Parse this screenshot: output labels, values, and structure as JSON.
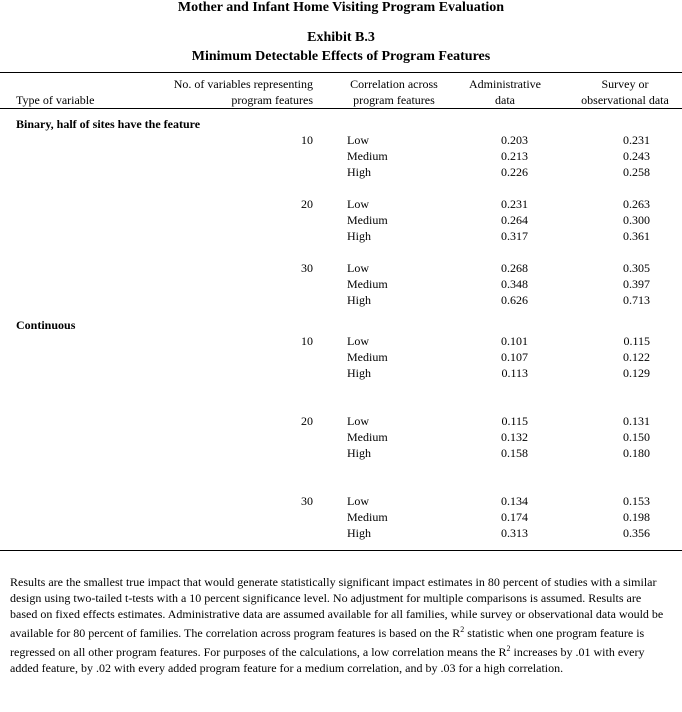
{
  "header": {
    "title": "Mother and Infant Home Visiting Program Evaluation",
    "exhibit": "Exhibit B.3",
    "subtitle": "Minimum Detectable Effects of Program Features"
  },
  "columns": {
    "type": "Type of variable",
    "num_line1": "No. of variables representing",
    "num_line2": "program features",
    "corr_line1": "Correlation across",
    "corr_line2": "program features",
    "admin_line1": "Administrative",
    "admin_line2": "data",
    "survey_line1": "Survey or",
    "survey_line2": "observational data"
  },
  "sections": [
    {
      "label": "Binary, half of sites have the feature",
      "groups": [
        {
          "n": "10",
          "rows": [
            [
              "Low",
              "0.203",
              "0.231"
            ],
            [
              "Medium",
              "0.213",
              "0.243"
            ],
            [
              "High",
              "0.226",
              "0.258"
            ]
          ]
        },
        {
          "n": "20",
          "rows": [
            [
              "Low",
              "0.231",
              "0.263"
            ],
            [
              "Medium",
              "0.264",
              "0.300"
            ],
            [
              "High",
              "0.317",
              "0.361"
            ]
          ]
        },
        {
          "n": "30",
          "rows": [
            [
              "Low",
              "0.268",
              "0.305"
            ],
            [
              "Medium",
              "0.348",
              "0.397"
            ],
            [
              "High",
              "0.626",
              "0.713"
            ]
          ]
        }
      ]
    },
    {
      "label": "Continuous",
      "groups": [
        {
          "n": "10",
          "rows": [
            [
              "Low",
              "0.101",
              "0.115"
            ],
            [
              "Medium",
              "0.107",
              "0.122"
            ],
            [
              "High",
              "0.113",
              "0.129"
            ]
          ]
        },
        {
          "n": "20",
          "rows": [
            [
              "Low",
              "0.115",
              "0.131"
            ],
            [
              "Medium",
              "0.132",
              "0.150"
            ],
            [
              "High",
              "0.158",
              "0.180"
            ]
          ]
        },
        {
          "n": "30",
          "rows": [
            [
              "Low",
              "0.134",
              "0.153"
            ],
            [
              "Medium",
              "0.174",
              "0.198"
            ],
            [
              "High",
              "0.313",
              "0.356"
            ]
          ]
        }
      ]
    }
  ],
  "footnote": {
    "p1": "Results are the smallest true impact that would generate statistically significant impact estimates in 80 percent of studies with a similar design using two-tailed t-tests with a 10 percent significance level.  No adjustment for multiple comparisons is assumed. Results are based on fixed effects estimates.  Administrative data are assumed available for all families, while survey or observational data would be available for 80 percent of families. The correlation across program features is based on the R",
    "sup1": "2",
    "p2": " statistic when one program feature is regressed on all other program features. For purposes of the calculations, a low correlation means the R",
    "sup2": "2",
    "p3": " increases by .01 with every added feature, by .02 with every added program feature for a medium correlation, and by .03 for a high correlation."
  }
}
